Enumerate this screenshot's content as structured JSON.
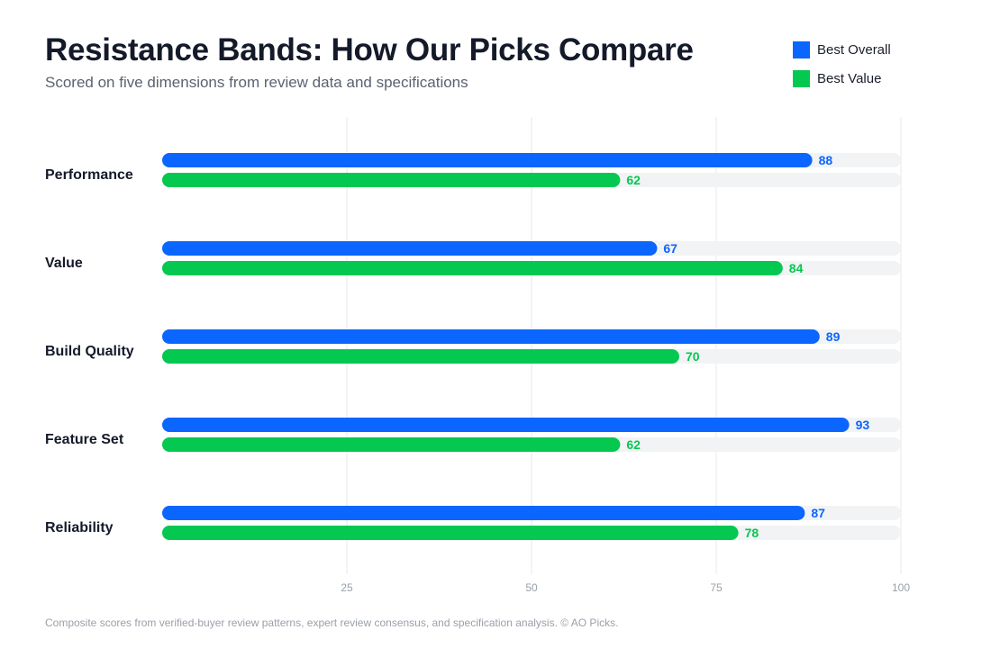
{
  "title": "Resistance Bands: How Our Picks Compare",
  "subtitle": "Scored on five dimensions from review data and specifications",
  "footnote": "Composite scores from verified-buyer review patterns, expert review consensus, and specification analysis. © AO Picks.",
  "colors": {
    "best_overall": "#0b66ff",
    "best_value": "#05c850",
    "track": "#f2f3f5",
    "grid": "#e6e8eb"
  },
  "chart_data": {
    "type": "bar",
    "orientation": "horizontal",
    "categories": [
      "Performance",
      "Value",
      "Build Quality",
      "Feature Set",
      "Reliability"
    ],
    "series": [
      {
        "name": "Best Overall",
        "values": [
          88,
          67,
          89,
          93,
          87
        ]
      },
      {
        "name": "Best Value",
        "values": [
          62,
          84,
          70,
          62,
          78
        ]
      }
    ],
    "xlim": [
      0,
      100
    ],
    "xticks": [
      25,
      50,
      75,
      100
    ],
    "grid": true,
    "legend_position": "top-right"
  }
}
